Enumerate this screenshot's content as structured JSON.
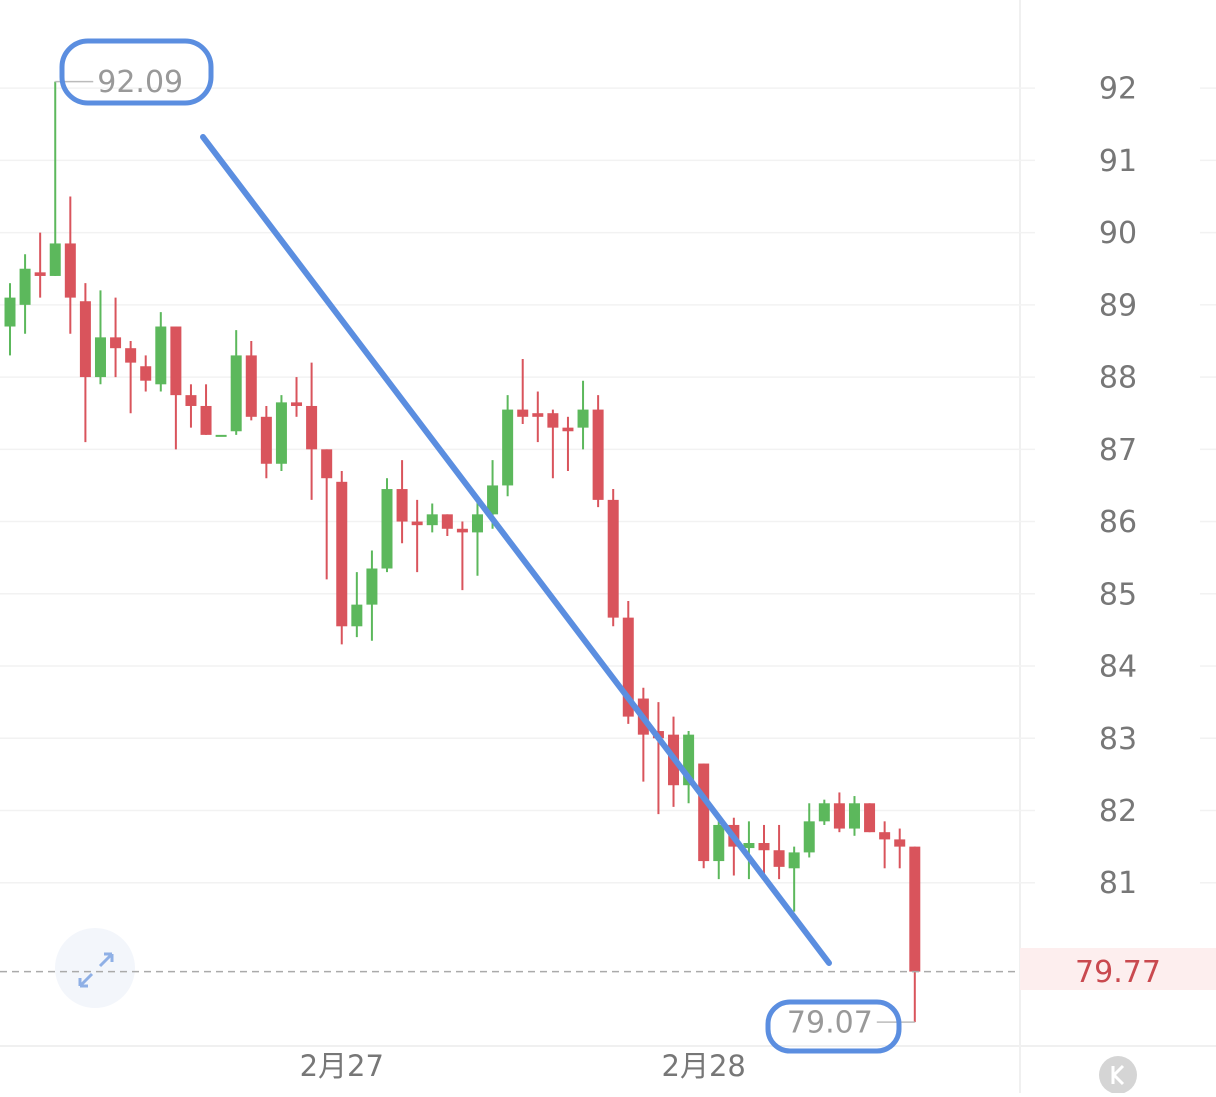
{
  "chart_data": {
    "type": "candlestick",
    "categories": [
      null,
      null,
      null,
      null,
      null,
      null,
      null,
      null,
      null,
      null,
      null,
      null,
      null,
      null,
      null,
      null,
      null,
      null,
      null,
      null,
      null,
      null,
      "2月27",
      null,
      null,
      null,
      null,
      null,
      null,
      null,
      null,
      null,
      null,
      null,
      null,
      null,
      null,
      null,
      null,
      null,
      null,
      null,
      null,
      null,
      null,
      null,
      "2月28",
      null,
      null,
      null,
      null,
      null,
      null,
      null,
      null,
      null,
      null,
      null,
      null,
      null,
      null
    ],
    "open": [
      88.7,
      89.0,
      89.45,
      89.4,
      89.85,
      89.05,
      88.0,
      88.55,
      88.4,
      88.15,
      87.9,
      88.7,
      87.75,
      87.6,
      87.2,
      87.25,
      88.3,
      87.45,
      86.8,
      87.65,
      87.6,
      87.0,
      86.55,
      84.55,
      84.85,
      85.35,
      86.45,
      86.0,
      85.95,
      86.1,
      85.9,
      85.85,
      86.1,
      86.5,
      87.55,
      87.5,
      87.5,
      87.3,
      87.3,
      87.55,
      86.3,
      84.67,
      83.55,
      83.1,
      83.05,
      82.35,
      82.65,
      81.3,
      81.8,
      81.48,
      81.55,
      81.45,
      81.2,
      81.42,
      81.85,
      82.1,
      81.75,
      82.1,
      81.7,
      81.6,
      81.5
    ],
    "high": [
      89.3,
      89.7,
      90.0,
      92.09,
      90.5,
      89.3,
      89.2,
      89.1,
      88.5,
      88.3,
      88.9,
      88.7,
      87.9,
      87.9,
      87.2,
      88.65,
      88.5,
      87.6,
      87.75,
      88.0,
      88.2,
      87.0,
      86.7,
      85.3,
      85.6,
      86.6,
      86.85,
      86.3,
      86.25,
      86.1,
      86.0,
      86.3,
      86.85,
      87.75,
      88.25,
      87.8,
      87.55,
      87.45,
      87.95,
      87.75,
      86.45,
      84.9,
      83.7,
      83.5,
      83.3,
      83.1,
      82.65,
      81.9,
      81.9,
      81.85,
      81.8,
      81.8,
      81.5,
      82.1,
      82.15,
      82.25,
      82.2,
      82.1,
      81.85,
      81.75,
      81.5
    ],
    "low": [
      88.3,
      88.6,
      89.1,
      89.4,
      88.6,
      87.1,
      87.9,
      88.0,
      87.5,
      87.8,
      87.8,
      87.0,
      87.3,
      87.2,
      87.2,
      87.2,
      87.4,
      86.6,
      86.7,
      87.45,
      86.3,
      85.2,
      84.3,
      84.4,
      84.35,
      85.3,
      85.7,
      85.3,
      85.85,
      85.8,
      85.05,
      85.25,
      85.9,
      86.35,
      87.35,
      87.1,
      86.6,
      86.7,
      87.0,
      86.2,
      84.55,
      83.2,
      82.4,
      81.95,
      82.05,
      82.1,
      81.2,
      81.05,
      81.1,
      81.05,
      81.1,
      81.05,
      80.6,
      81.35,
      81.8,
      81.7,
      81.65,
      81.7,
      81.2,
      81.2,
      79.07
    ],
    "close": [
      89.1,
      89.5,
      89.4,
      89.85,
      89.1,
      88.0,
      88.55,
      88.4,
      88.2,
      87.95,
      88.7,
      87.75,
      87.6,
      87.2,
      87.2,
      88.3,
      87.45,
      86.8,
      87.65,
      87.6,
      87.0,
      86.6,
      84.55,
      84.85,
      85.35,
      86.45,
      86.0,
      85.95,
      86.1,
      85.9,
      85.85,
      86.1,
      86.5,
      87.55,
      87.45,
      87.45,
      87.3,
      87.25,
      87.55,
      86.3,
      84.67,
      83.3,
      83.05,
      83.0,
      82.35,
      83.05,
      81.3,
      81.8,
      81.5,
      81.55,
      81.45,
      81.22,
      81.42,
      81.85,
      82.1,
      81.75,
      82.1,
      81.7,
      81.6,
      81.5,
      79.77
    ],
    "up_color": "#5cb85c",
    "down_color": "#d9545c",
    "ylim": [
      78.74,
      93.22
    ],
    "yticks": [
      81,
      82,
      83,
      84,
      85,
      86,
      87,
      88,
      89,
      90,
      91,
      92
    ],
    "grid": true,
    "max_label": 92.09,
    "min_label": 79.07,
    "last_price": 79.77
  }
}
